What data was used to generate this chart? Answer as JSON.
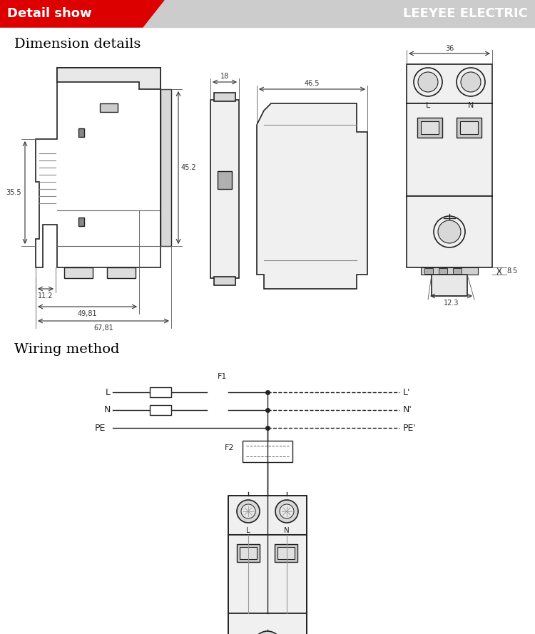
{
  "header_bg_color": "#cccccc",
  "header_red_color": "#dd0000",
  "header_text_left": "Detail show",
  "header_text_right": "LEEYEE ELECTRIC",
  "section1_title": "Dimension details",
  "section2_title": "Wiring method",
  "bg_color": "#ffffff",
  "line_color": "#222222",
  "dim_color": "#555555",
  "fig_width": 7.5,
  "fig_height": 8.89
}
